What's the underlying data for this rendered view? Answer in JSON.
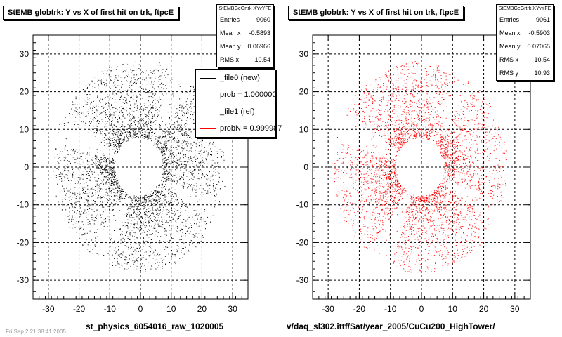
{
  "footer": {
    "left_label": "st_physics_6054016_raw_1020005",
    "right_label": "v/daq_sl302.ittf/Sat/year_2005/CuCu200_HighTower/",
    "faint_label": "Fri Sep 2 21:38:41 2005"
  },
  "legend": {
    "items": [
      {
        "label": "_file0 (new)",
        "color": "#000000"
      },
      {
        "label": "prob = 1.000000",
        "color": "#000000"
      },
      {
        "label": "_file1 (ref)",
        "color": "#ff0000"
      },
      {
        "label": "probN = 0.999987",
        "color": "#ff0000"
      }
    ]
  },
  "chart_data": [
    {
      "type": "scatter",
      "title": "StEMB globtrk: Y vs X of first hit on trk, ftpcE",
      "xlim": [
        -35,
        35
      ],
      "ylim": [
        -35,
        35
      ],
      "xticks": [
        -30,
        -20,
        -10,
        0,
        10,
        20,
        30
      ],
      "yticks": [
        -30,
        -20,
        -10,
        0,
        10,
        20,
        30
      ],
      "grid": true,
      "marker_color": "#000000",
      "description": "FTPC-east first-hit positions: ring of hits between radius ~8 and ~28 with empty inner hole",
      "stats": {
        "header": "StEMBGeGrtrk XYvYFE",
        "rows": [
          {
            "label": "Entries",
            "value": "9060"
          },
          {
            "label": "Mean x",
            "value": "-0.5893"
          },
          {
            "label": "Mean y",
            "value": "0.06966"
          },
          {
            "label": "RMS x",
            "value": "10.54"
          }
        ]
      }
    },
    {
      "type": "scatter",
      "title": "StEMB globtrk: Y vs X of first hit on trk, ftpcE",
      "xlim": [
        -35,
        35
      ],
      "ylim": [
        -35,
        35
      ],
      "xticks": [
        -30,
        -20,
        -10,
        0,
        10,
        20,
        30
      ],
      "yticks": [
        -30,
        -20,
        -10,
        0,
        10,
        20,
        30
      ],
      "grid": true,
      "marker_color": "#ff0000",
      "description": "Reference FTPC-east first-hit positions: ring of hits between radius ~8 and ~28 with empty inner hole",
      "stats": {
        "header": "StEMBGeGrtrk XYvYFE",
        "rows": [
          {
            "label": "Entries",
            "value": "9061"
          },
          {
            "label": "Mean x",
            "value": "-0.5903"
          },
          {
            "label": "Mean y",
            "value": "0.07065"
          },
          {
            "label": "RMS x",
            "value": "10.54"
          },
          {
            "label": "RMS y",
            "value": "10.93"
          }
        ]
      }
    }
  ]
}
